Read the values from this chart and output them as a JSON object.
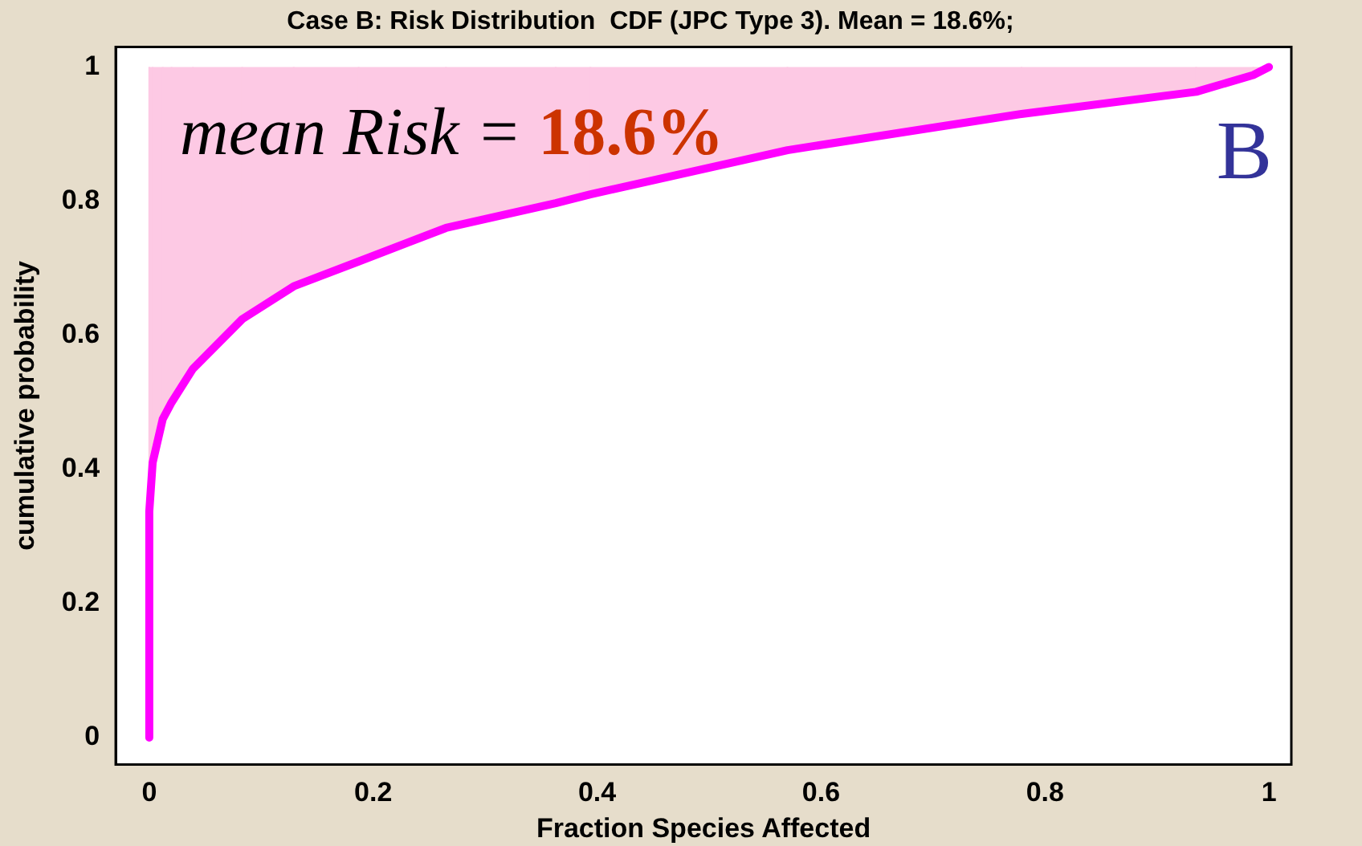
{
  "chart_data": {
    "type": "line",
    "title": "Case B: Risk Distribution  CDF (JPC Type 3). Mean = 18.6%;",
    "xlabel": "Fraction Species Affected",
    "ylabel": "cumulative probability",
    "x": [
      0,
      0,
      0.003,
      0.012,
      0.02,
      0.039,
      0.083,
      0.129,
      0.187,
      0.265,
      0.363,
      0.394,
      0.57,
      0.779,
      0.935,
      0.986,
      1
    ],
    "series": [
      {
        "color": "#ff00ff",
        "values": [
          0,
          0.337,
          0.41,
          0.475,
          0.5,
          0.55,
          0.624,
          0.673,
          0.71,
          0.76,
          0.797,
          0.81,
          0.876,
          0.93,
          0.963,
          0.988,
          1
        ],
        "lower": [
          0,
          0.337,
          0.41,
          0.475,
          0.5,
          0.55,
          0.624,
          0.673,
          0.71,
          0.76,
          0.797,
          0.81,
          0.876,
          0.93,
          0.963,
          0.988,
          1
        ],
        "upper": [
          1,
          1,
          1,
          1,
          1,
          1,
          1,
          1,
          1,
          1,
          1,
          1,
          1,
          1,
          1,
          1,
          1
        ]
      }
    ],
    "xlim": [
      -0.03,
      1.02
    ],
    "ylim": [
      -0.04,
      1.03
    ],
    "xticks": [
      0,
      0.2,
      0.4,
      0.6,
      0.8,
      1
    ],
    "yticks": [
      0,
      0.2,
      0.4,
      0.6,
      0.8,
      1
    ],
    "grid": false,
    "legend": false,
    "marker": "none",
    "line_style": "solid",
    "annotations": [
      "mean Risk = 18.6%",
      "B"
    ]
  }
}
